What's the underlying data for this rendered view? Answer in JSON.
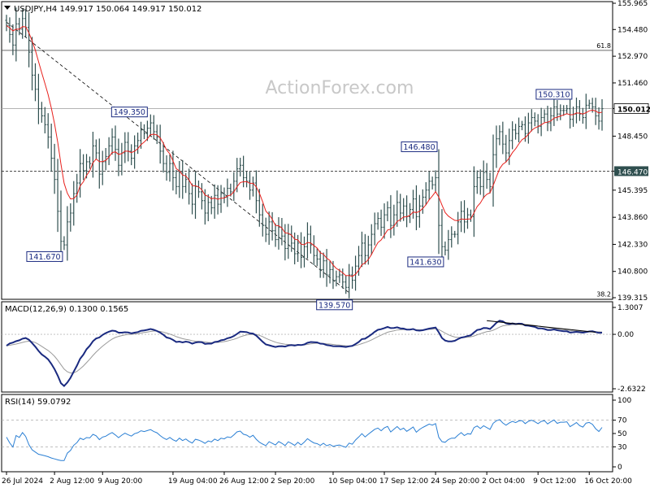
{
  "watermark": "ActionForex.com",
  "colors": {
    "price": "#2f4f4f",
    "ema": "#e8201c",
    "trend": "#000000",
    "macd": "#1a2a80",
    "signal": "#9a9a9a",
    "rsi": "#2a7fd4",
    "label_box": "#1a2a80",
    "level_tag": "#2f4f4f"
  },
  "chart_data": [
    {
      "type": "candlestick",
      "title": "USDJPY,H4  149.917 150.064 149.917 150.012",
      "ylim": [
        139.315,
        155.965
      ],
      "y_ticks": [
        "155.965",
        "154.480",
        "152.970",
        "151.460",
        "150.012",
        "148.450",
        "146.470",
        "145.395",
        "143.860",
        "142.330",
        "140.800",
        "139.315"
      ],
      "current_price": "150.012",
      "level_line": "146.470",
      "fib_labels": {
        "top": "61.8",
        "bottom": "38.2"
      },
      "fib_levels": [
        153.3,
        139.3
      ],
      "price_labels": [
        {
          "label": "149.350",
          "anchor": "high",
          "index": 45
        },
        {
          "label": "141.670",
          "anchor": "low",
          "index": 18
        },
        {
          "label": "139.570",
          "anchor": "low",
          "index": 107
        },
        {
          "label": "146.480",
          "anchor": "high",
          "index": 135
        },
        {
          "label": "141.630",
          "anchor": "low",
          "index": 137
        },
        {
          "label": "150.310",
          "anchor": "high",
          "index": 171
        }
      ],
      "trendline": {
        "from_index": 0,
        "from_price": 154.9,
        "to_index": 107,
        "to_price": 139.6
      },
      "close": [
        154.7,
        154.2,
        153.6,
        154.8,
        154.5,
        155.1,
        154.6,
        153.2,
        151.9,
        151.1,
        150.0,
        149.6,
        149.1,
        148.4,
        147.2,
        146.0,
        144.2,
        142.5,
        142.3,
        143.6,
        144.1,
        145.2,
        145.8,
        146.9,
        146.5,
        147.0,
        146.9,
        147.9,
        147.5,
        146.3,
        147.0,
        147.3,
        147.9,
        148.4,
        147.7,
        146.8,
        147.5,
        148.1,
        147.6,
        147.2,
        147.9,
        148.2,
        148.8,
        148.6,
        148.9,
        149.2,
        148.7,
        148.4,
        147.6,
        146.9,
        146.4,
        146.9,
        146.1,
        145.6,
        146.4,
        145.6,
        146.0,
        145.2,
        144.6,
        145.6,
        145.3,
        144.8,
        144.1,
        144.7,
        144.4,
        145.1,
        144.6,
        145.2,
        145.0,
        145.5,
        145.3,
        145.9,
        146.6,
        146.8,
        146.1,
        145.9,
        145.4,
        145.8,
        144.8,
        144.0,
        143.4,
        142.9,
        143.6,
        143.1,
        142.6,
        143.3,
        142.8,
        142.1,
        142.9,
        142.4,
        141.8,
        142.4,
        141.6,
        142.2,
        142.9,
        142.3,
        141.7,
        141.5,
        140.9,
        141.4,
        140.6,
        140.9,
        140.3,
        140.5,
        140.6,
        140.2,
        139.9,
        140.6,
        140.3,
        141.1,
        141.7,
        142.4,
        141.7,
        142.3,
        142.9,
        143.5,
        143.8,
        143.3,
        144.0,
        144.4,
        143.4,
        144.0,
        144.7,
        144.1,
        144.5,
        143.9,
        144.3,
        144.9,
        143.9,
        144.5,
        145.0,
        145.4,
        145.9,
        145.7,
        146.1,
        143.4,
        142.2,
        142.0,
        142.6,
        142.9,
        142.9,
        143.6,
        144.2,
        143.6,
        144.0,
        143.9,
        145.6,
        146.1,
        145.6,
        146.4,
        146.0,
        145.6,
        147.4,
        148.3,
        148.7,
        148.0,
        147.5,
        148.2,
        148.8,
        148.6,
        149.0,
        149.1,
        148.6,
        149.2,
        149.5,
        149.3,
        149.0,
        149.5,
        149.7,
        149.2,
        149.6,
        150.1,
        149.7,
        149.9,
        149.9,
        150.0,
        149.4,
        149.7,
        150.1,
        149.7,
        149.5,
        150.2,
        150.3,
        150.1,
        149.6,
        149.3,
        150.0
      ],
      "ema": [
        154.7,
        154.58,
        154.4,
        154.5,
        154.5,
        154.64,
        154.63,
        154.29,
        153.84,
        153.31,
        152.67,
        152.04,
        151.43,
        150.8,
        150.03,
        149.16,
        148.09,
        146.87,
        145.79,
        145.22,
        144.9,
        144.92,
        145.12,
        145.63,
        145.87,
        146.23,
        146.49,
        146.94,
        147.16,
        147.01,
        147.01,
        147.08,
        147.27,
        147.52,
        147.56,
        147.42,
        147.46,
        147.6,
        147.6,
        147.52,
        147.6,
        147.74,
        147.97,
        148.12,
        148.3,
        148.53,
        148.56,
        148.52,
        148.35,
        148.04,
        147.67,
        147.45,
        147.05,
        146.61,
        146.49,
        146.25,
        146.2,
        145.98,
        145.65,
        145.64,
        145.58,
        145.42,
        145.12,
        145.04,
        144.91,
        144.95,
        144.88,
        144.94,
        144.95,
        145.07,
        145.12,
        145.3,
        145.59,
        145.83,
        145.87,
        145.88,
        145.78,
        145.78,
        145.58,
        145.22,
        144.74,
        144.21,
        144.01,
        143.75,
        143.4,
        143.38,
        143.26,
        142.98,
        142.96,
        142.85,
        142.62,
        142.58,
        142.34,
        142.31,
        142.44,
        142.41,
        142.27,
        142.12,
        141.86,
        141.77,
        141.55,
        141.42,
        141.16,
        140.97,
        140.86,
        140.72,
        140.56,
        140.57,
        140.52,
        140.64,
        140.87,
        141.18,
        141.29,
        141.47,
        141.76,
        142.11,
        142.43,
        142.58,
        142.85,
        143.14,
        143.19,
        143.35,
        143.63,
        143.73,
        143.88,
        143.89,
        143.97,
        144.16,
        144.13,
        144.2,
        144.36,
        144.57,
        144.85,
        145.06,
        145.31,
        145.01,
        144.55,
        144.13,
        143.93,
        143.8,
        143.69,
        143.67,
        143.77,
        143.74,
        143.76,
        143.77,
        144.11,
        144.47,
        144.67,
        144.98,
        145.16,
        145.25,
        145.66,
        146.14,
        146.61,
        146.86,
        146.99,
        147.21,
        147.52,
        147.73,
        148.01,
        148.25,
        148.36,
        148.56,
        148.77,
        148.91,
        148.99,
        149.09,
        149.21,
        149.24,
        149.31,
        149.47,
        149.52,
        149.59,
        149.65,
        149.72,
        149.66,
        149.67,
        149.76,
        149.75,
        149.7,
        149.78,
        149.88,
        149.92,
        149.87,
        149.76,
        149.81
      ],
      "x_labels": [
        {
          "label": "26 Jul 2024",
          "index": 0
        },
        {
          "label": "2 Aug 12:00",
          "index": 15
        },
        {
          "label": "9 Aug 20:00",
          "index": 30
        },
        {
          "label": "19 Aug 04:00",
          "index": 52
        },
        {
          "label": "26 Aug 12:00",
          "index": 68
        },
        {
          "label": "2 Sep 20:00",
          "index": 84
        },
        {
          "label": "10 Sep 04:00",
          "index": 102
        },
        {
          "label": "17 Sep 12:00",
          "index": 118
        },
        {
          "label": "24 Sep 20:00",
          "index": 134
        },
        {
          "label": "2 Oct 04:00",
          "index": 150
        },
        {
          "label": "9 Oct 12:00",
          "index": 166
        },
        {
          "label": "16 Oct 20:00",
          "index": 182
        }
      ]
    },
    {
      "type": "line",
      "title": "MACD(12,26,9) 0.1300 0.1565",
      "ylim": [
        -2.6322,
        1.3007
      ],
      "y_ticks": [
        "1.3007",
        "0.00",
        "-2.6322"
      ],
      "zero_label": "0.00",
      "series": [
        {
          "name": "MACD",
          "values": [
            -0.55,
            -0.44,
            -0.4,
            -0.33,
            -0.29,
            -0.21,
            -0.18,
            -0.26,
            -0.42,
            -0.6,
            -0.8,
            -0.97,
            -1.08,
            -1.21,
            -1.43,
            -1.68,
            -2.0,
            -2.36,
            -2.5,
            -2.33,
            -2.1,
            -1.8,
            -1.51,
            -1.18,
            -0.98,
            -0.72,
            -0.55,
            -0.33,
            -0.2,
            -0.15,
            -0.03,
            0.06,
            0.13,
            0.18,
            0.16,
            0.08,
            0.08,
            0.1,
            0.09,
            0.05,
            0.08,
            0.11,
            0.17,
            0.19,
            0.22,
            0.26,
            0.22,
            0.16,
            0.08,
            -0.02,
            -0.15,
            -0.19,
            -0.27,
            -0.37,
            -0.35,
            -0.39,
            -0.35,
            -0.38,
            -0.45,
            -0.4,
            -0.37,
            -0.38,
            -0.46,
            -0.45,
            -0.45,
            -0.37,
            -0.35,
            -0.29,
            -0.26,
            -0.19,
            -0.15,
            -0.08,
            0.02,
            0.13,
            0.12,
            0.11,
            0.05,
            0.04,
            -0.06,
            -0.21,
            -0.36,
            -0.49,
            -0.53,
            -0.57,
            -0.61,
            -0.58,
            -0.57,
            -0.59,
            -0.54,
            -0.52,
            -0.54,
            -0.51,
            -0.52,
            -0.49,
            -0.41,
            -0.37,
            -0.38,
            -0.39,
            -0.45,
            -0.46,
            -0.52,
            -0.54,
            -0.57,
            -0.58,
            -0.58,
            -0.59,
            -0.61,
            -0.58,
            -0.56,
            -0.47,
            -0.37,
            -0.23,
            -0.21,
            -0.11,
            0.0,
            0.12,
            0.22,
            0.25,
            0.3,
            0.36,
            0.3,
            0.31,
            0.34,
            0.29,
            0.28,
            0.23,
            0.23,
            0.26,
            0.19,
            0.18,
            0.2,
            0.24,
            0.28,
            0.3,
            0.33,
            0.1,
            -0.18,
            -0.3,
            -0.34,
            -0.34,
            -0.31,
            -0.23,
            -0.16,
            -0.13,
            -0.08,
            -0.05,
            0.09,
            0.21,
            0.24,
            0.31,
            0.3,
            0.26,
            0.4,
            0.56,
            0.66,
            0.63,
            0.53,
            0.5,
            0.53,
            0.5,
            0.52,
            0.51,
            0.43,
            0.42,
            0.39,
            0.36,
            0.29,
            0.29,
            0.26,
            0.21,
            0.21,
            0.24,
            0.2,
            0.17,
            0.15,
            0.15,
            0.09,
            0.1,
            0.12,
            0.1,
            0.08,
            0.11,
            0.14,
            0.15,
            0.11,
            0.07,
            0.08
          ]
        },
        {
          "name": "Signal",
          "values": [
            -0.55,
            -0.53,
            -0.5,
            -0.47,
            -0.43,
            -0.39,
            -0.35,
            -0.33,
            -0.35,
            -0.4,
            -0.48,
            -0.58,
            -0.68,
            -0.78,
            -0.91,
            -1.06,
            -1.25,
            -1.47,
            -1.68,
            -1.81,
            -1.87,
            -1.86,
            -1.79,
            -1.67,
            -1.53,
            -1.37,
            -1.2,
            -1.02,
            -0.86,
            -0.71,
            -0.57,
            -0.45,
            -0.33,
            -0.23,
            -0.15,
            -0.1,
            -0.06,
            -0.03,
            -0.01,
            0.0,
            0.02,
            0.03,
            0.06,
            0.09,
            0.11,
            0.14,
            0.16,
            0.16,
            0.14,
            0.11,
            0.06,
            0.01,
            -0.04,
            -0.11,
            -0.16,
            -0.21,
            -0.24,
            -0.27,
            -0.31,
            -0.33,
            -0.34,
            -0.35,
            -0.37,
            -0.39,
            -0.4,
            -0.39,
            -0.39,
            -0.37,
            -0.35,
            -0.32,
            -0.28,
            -0.24,
            -0.19,
            -0.12,
            -0.07,
            -0.03,
            -0.01,
            0.0,
            -0.01,
            -0.05,
            -0.11,
            -0.19,
            -0.26,
            -0.32,
            -0.38,
            -0.42,
            -0.45,
            -0.48,
            -0.49,
            -0.5,
            -0.51,
            -0.51,
            -0.51,
            -0.51,
            -0.49,
            -0.46,
            -0.44,
            -0.43,
            -0.44,
            -0.44,
            -0.46,
            -0.47,
            -0.49,
            -0.51,
            -0.52,
            -0.54,
            -0.55,
            -0.56,
            -0.56,
            -0.54,
            -0.5,
            -0.45,
            -0.4,
            -0.34,
            -0.27,
            -0.19,
            -0.11,
            -0.04,
            0.03,
            0.1,
            0.14,
            0.17,
            0.21,
            0.22,
            0.23,
            0.23,
            0.24,
            0.24,
            0.23,
            0.22,
            0.22,
            0.23,
            0.24,
            0.25,
            0.27,
            0.23,
            0.15,
            0.06,
            -0.02,
            -0.08,
            -0.13,
            -0.15,
            -0.15,
            -0.15,
            -0.14,
            -0.12,
            -0.08,
            -0.02,
            0.03,
            0.08,
            0.13,
            0.15,
            0.2,
            0.27,
            0.35,
            0.41,
            0.43,
            0.45,
            0.47,
            0.47,
            0.48,
            0.49,
            0.48,
            0.47,
            0.45,
            0.43,
            0.4,
            0.38,
            0.35,
            0.33,
            0.3,
            0.29,
            0.27,
            0.25,
            0.23,
            0.21,
            0.19,
            0.17,
            0.16,
            0.15,
            0.14,
            0.13,
            0.13,
            0.13,
            0.13,
            0.12,
            0.11
          ]
        }
      ],
      "trendline": {
        "from_index": 150,
        "from_value": 0.66,
        "to_index": 184,
        "to_value": 0.1
      }
    },
    {
      "type": "line",
      "title": "RSI(14) 59.0792",
      "ylim": [
        0,
        100
      ],
      "y_ticks": [
        "100",
        "70",
        "50",
        "30",
        "0"
      ],
      "guides": [
        70,
        30
      ],
      "series": [
        {
          "name": "RSI",
          "values": [
            44.5,
            36.0,
            29.6,
            47.0,
            44.1,
            51.4,
            45.6,
            33.2,
            25.6,
            22.2,
            18.9,
            17.8,
            16.6,
            15.2,
            13.3,
            11.9,
            10.5,
            9.5,
            9.4,
            20.6,
            24.6,
            32.5,
            36.3,
            42.9,
            40.9,
            43.9,
            43.4,
            48.8,
            46.6,
            40.8,
            44.6,
            46.0,
            49.0,
            51.5,
            47.8,
            43.8,
            47.6,
            50.5,
            48.0,
            46.1,
            49.7,
            51.2,
            54.1,
            52.9,
            54.4,
            55.8,
            52.9,
            51.1,
            46.8,
            43.3,
            41.0,
            44.2,
            40.6,
            38.4,
            43.0,
            39.4,
            41.8,
            38.2,
            35.7,
            41.4,
            40.1,
            38.0,
            35.2,
            38.8,
            37.5,
            41.6,
            39.3,
            42.9,
            41.9,
            45.0,
            43.9,
            47.9,
            52.4,
            53.7,
            48.9,
            47.6,
            44.5,
            47.3,
            41.3,
            37.0,
            34.1,
            31.8,
            37.7,
            35.2,
            32.8,
            37.9,
            35.4,
            31.9,
            37.6,
            35.1,
            32.2,
            36.8,
            32.9,
            37.1,
            42.2,
            38.8,
            35.8,
            34.8,
            32.1,
            35.4,
            31.6,
            33.5,
            30.7,
            32.0,
            32.7,
            30.8,
            29.4,
            35.6,
            33.9,
            40.2,
            44.8,
            49.8,
            44.9,
            48.9,
            52.7,
            56.4,
            58.2,
            54.1,
            58.4,
            60.6,
            52.3,
            56.4,
            60.5,
            55.6,
            58.0,
            53.3,
            56.3,
            59.7,
            52.0,
            56.1,
            59.2,
            61.6,
            64.2,
            62.6,
            64.9,
            44.4,
            37.8,
            36.8,
            41.0,
            43.0,
            43.0,
            47.6,
            51.3,
            47.0,
            49.7,
            49.0,
            58.9,
            61.3,
            57.5,
            61.6,
            58.9,
            56.2,
            65.4,
            69.2,
            70.8,
            65.8,
            62.5,
            65.7,
            68.3,
            66.4,
            68.9,
            69.4,
            64.9,
            68.3,
            69.9,
            67.8,
            64.8,
            68.2,
            69.3,
            64.4,
            67.5,
            70.2,
            65.3,
            66.9,
            66.9,
            67.5,
            60.3,
            63.2,
            66.5,
            61.8,
            59.6,
            65.6,
            66.6,
            63.8,
            57.2,
            53.1,
            59.1
          ]
        }
      ]
    }
  ]
}
